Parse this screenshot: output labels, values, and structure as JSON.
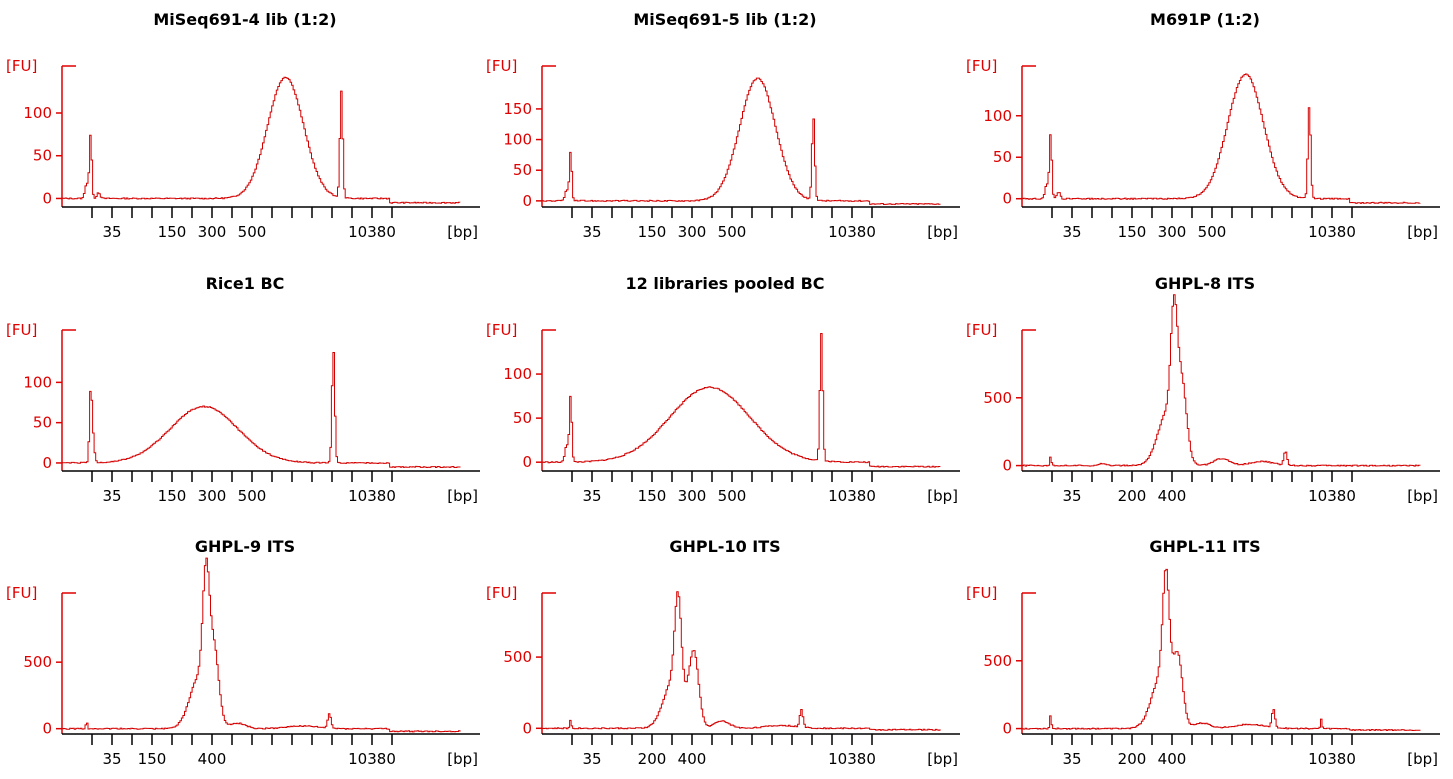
{
  "colors": {
    "trace": "#d40000",
    "y_axis": "#e00000",
    "x_axis": "#000000"
  },
  "chart_data": [
    {
      "type": "line",
      "title": "MiSeq691-4 lib (1:2)",
      "ylabel": "[FU]",
      "xlabel": "[bp]",
      "ylim": [
        -10,
        155
      ],
      "yticks": [
        0,
        50,
        100
      ],
      "xtick_count": 16,
      "xtick_labels": [
        {
          "label": "35",
          "tick": 1
        },
        {
          "label": "150",
          "tick": 4
        },
        {
          "label": "300",
          "tick": 6
        },
        {
          "label": "500",
          "tick": 8
        },
        {
          "label": "10380",
          "tick": 14
        }
      ],
      "baseline": 0,
      "tail": -5,
      "peaks": [
        [
          0.07,
          75,
          0.003
        ],
        [
          0.06,
          18,
          0.004
        ],
        [
          0.09,
          7,
          0.004
        ],
        [
          0.56,
          142,
          0.045
        ],
        [
          0.7,
          125,
          0.0035
        ]
      ]
    },
    {
      "type": "line",
      "title": "MiSeq691-5 lib (1:2)",
      "ylabel": "[FU]",
      "xlabel": "[bp]",
      "ylim": [
        -10,
        220
      ],
      "yticks": [
        0,
        50,
        100,
        150
      ],
      "xtick_count": 16,
      "xtick_labels": [
        {
          "label": "35",
          "tick": 1
        },
        {
          "label": "150",
          "tick": 4
        },
        {
          "label": "300",
          "tick": 6
        },
        {
          "label": "500",
          "tick": 8
        },
        {
          "label": "10380",
          "tick": 14
        }
      ],
      "baseline": 0,
      "tail": -5,
      "peaks": [
        [
          0.07,
          80,
          0.003
        ],
        [
          0.06,
          18,
          0.004
        ],
        [
          0.54,
          200,
          0.045
        ],
        [
          0.68,
          135,
          0.0035
        ]
      ]
    },
    {
      "type": "line",
      "title": "M691P (1:2)",
      "ylabel": "[FU]",
      "xlabel": "[bp]",
      "ylim": [
        -10,
        160
      ],
      "yticks": [
        0,
        50,
        100
      ],
      "xtick_count": 16,
      "xtick_labels": [
        {
          "label": "35",
          "tick": 1
        },
        {
          "label": "150",
          "tick": 4
        },
        {
          "label": "300",
          "tick": 6
        },
        {
          "label": "500",
          "tick": 8
        },
        {
          "label": "10380",
          "tick": 14
        }
      ],
      "baseline": 0,
      "tail": -5,
      "peaks": [
        [
          0.07,
          78,
          0.003
        ],
        [
          0.06,
          18,
          0.004
        ],
        [
          0.09,
          8,
          0.004
        ],
        [
          0.56,
          150,
          0.045
        ],
        [
          0.72,
          112,
          0.0035
        ]
      ]
    },
    {
      "type": "line",
      "title": "Rice1 BC",
      "ylabel": "[FU]",
      "xlabel": "[bp]",
      "ylim": [
        -10,
        165
      ],
      "yticks": [
        0,
        50,
        100
      ],
      "xtick_count": 16,
      "xtick_labels": [
        {
          "label": "35",
          "tick": 1
        },
        {
          "label": "150",
          "tick": 4
        },
        {
          "label": "300",
          "tick": 6
        },
        {
          "label": "500",
          "tick": 8
        },
        {
          "label": "10380",
          "tick": 14
        }
      ],
      "baseline": 0,
      "tail": -5,
      "peaks": [
        [
          0.07,
          78,
          0.003
        ],
        [
          0.075,
          35,
          0.004
        ],
        [
          0.355,
          70,
          0.085
        ],
        [
          0.68,
          140,
          0.0035
        ]
      ]
    },
    {
      "type": "line",
      "title": "12 libraries pooled BC",
      "ylabel": "[FU]",
      "xlabel": "[bp]",
      "ylim": [
        -10,
        150
      ],
      "yticks": [
        0,
        50,
        100
      ],
      "xtick_count": 16,
      "xtick_labels": [
        {
          "label": "35",
          "tick": 1
        },
        {
          "label": "150",
          "tick": 4
        },
        {
          "label": "300",
          "tick": 6
        },
        {
          "label": "500",
          "tick": 8
        },
        {
          "label": "10380",
          "tick": 14
        }
      ],
      "baseline": 0,
      "tail": -5,
      "peaks": [
        [
          0.07,
          76,
          0.003
        ],
        [
          0.06,
          20,
          0.004
        ],
        [
          0.42,
          85,
          0.1
        ],
        [
          0.7,
          145,
          0.0035
        ]
      ]
    },
    {
      "type": "line",
      "title": "GHPL-8 ITS",
      "ylabel": "[FU]",
      "xlabel": "[bp]",
      "ylim": [
        -40,
        1000
      ],
      "yticks": [
        0,
        500
      ],
      "xtick_count": 16,
      "xtick_labels": [
        {
          "label": "35",
          "tick": 1
        },
        {
          "label": "200",
          "tick": 4
        },
        {
          "label": "400",
          "tick": 6
        },
        {
          "label": "10380",
          "tick": 14
        }
      ],
      "baseline": 0,
      "tail": 0,
      "peaks": [
        [
          0.07,
          70,
          0.002
        ],
        [
          0.38,
          800,
          0.008
        ],
        [
          0.365,
          400,
          0.025
        ],
        [
          0.4,
          500,
          0.012
        ],
        [
          0.2,
          15,
          0.01
        ],
        [
          0.5,
          50,
          0.02
        ],
        [
          0.6,
          30,
          0.03
        ],
        [
          0.66,
          100,
          0.004
        ]
      ]
    },
    {
      "type": "line",
      "title": "GHPL-9 ITS",
      "ylabel": "[FU]",
      "xlabel": "[bp]",
      "ylim": [
        -40,
        1020
      ],
      "yticks": [
        0,
        500
      ],
      "xtick_count": 16,
      "xtick_labels": [
        {
          "label": "35",
          "tick": 1
        },
        {
          "label": "150",
          "tick": 3
        },
        {
          "label": "400",
          "tick": 6
        },
        {
          "label": "10380",
          "tick": 14
        }
      ],
      "baseline": 0,
      "tail": -20,
      "peaks": [
        [
          0.06,
          60,
          0.002
        ],
        [
          0.36,
          820,
          0.008
        ],
        [
          0.345,
          400,
          0.025
        ],
        [
          0.38,
          500,
          0.012
        ],
        [
          0.44,
          40,
          0.02
        ],
        [
          0.6,
          20,
          0.04
        ],
        [
          0.67,
          110,
          0.004
        ]
      ]
    },
    {
      "type": "line",
      "title": "GHPL-10 ITS",
      "ylabel": "[FU]",
      "xlabel": "[bp]",
      "ylim": [
        -40,
        950
      ],
      "yticks": [
        0,
        500
      ],
      "xtick_count": 16,
      "xtick_labels": [
        {
          "label": "35",
          "tick": 1
        },
        {
          "label": "200",
          "tick": 4
        },
        {
          "label": "400",
          "tick": 6
        },
        {
          "label": "10380",
          "tick": 14
        }
      ],
      "baseline": 0,
      "tail": -10,
      "peaks": [
        [
          0.07,
          60,
          0.002
        ],
        [
          0.34,
          640,
          0.008
        ],
        [
          0.33,
          350,
          0.025
        ],
        [
          0.38,
          500,
          0.012
        ],
        [
          0.45,
          50,
          0.02
        ],
        [
          0.6,
          20,
          0.04
        ],
        [
          0.65,
          120,
          0.004
        ]
      ]
    },
    {
      "type": "line",
      "title": "GHPL-11 ITS",
      "ylabel": "[FU]",
      "xlabel": "[bp]",
      "ylim": [
        -40,
        1000
      ],
      "yticks": [
        0,
        500
      ],
      "xtick_count": 16,
      "xtick_labels": [
        {
          "label": "35",
          "tick": 1
        },
        {
          "label": "200",
          "tick": 4
        },
        {
          "label": "400",
          "tick": 6
        },
        {
          "label": "10380",
          "tick": 14
        }
      ],
      "baseline": 0,
      "tail": -10,
      "peaks": [
        [
          0.07,
          100,
          0.002
        ],
        [
          0.36,
          800,
          0.008
        ],
        [
          0.35,
          400,
          0.025
        ],
        [
          0.39,
          450,
          0.012
        ],
        [
          0.45,
          40,
          0.02
        ],
        [
          0.57,
          30,
          0.04
        ],
        [
          0.63,
          130,
          0.004
        ],
        [
          0.75,
          70,
          0.002
        ]
      ]
    }
  ]
}
